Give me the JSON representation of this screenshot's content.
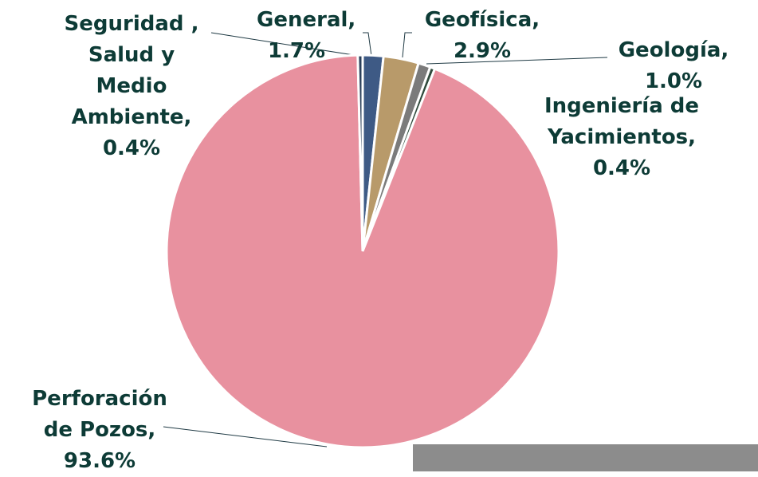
{
  "chart_data": {
    "type": "pie",
    "categories": [
      "General,",
      "Geofísica,",
      "Geología,",
      "Ingeniería de Yacimientos,",
      "Perforación de Pozos,",
      "Seguridad , Salud y Medio Ambiente,"
    ],
    "values": [
      1.7,
      2.9,
      1.0,
      0.4,
      93.6,
      0.4
    ],
    "value_labels": [
      "1.7%",
      "2.9%",
      "1.0%",
      "0.4%",
      "93.6%",
      "0.4%"
    ],
    "colors": [
      "#3e5a85",
      "#b89a6a",
      "#7b7b7b",
      "#2f4a3c",
      "#e8919f",
      "#2a3f5a"
    ]
  }
}
